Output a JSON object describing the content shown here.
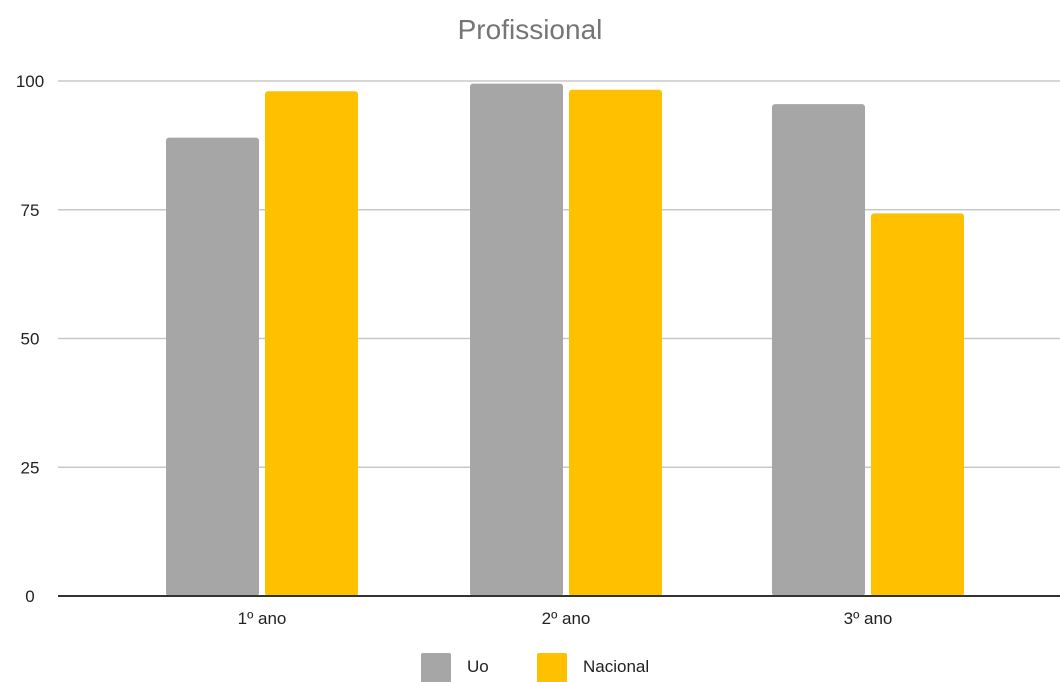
{
  "chart_data": {
    "type": "bar",
    "title": "Profissional",
    "categories": [
      "1º ano",
      "2º ano",
      "3º ano"
    ],
    "series": [
      {
        "name": "Uo",
        "values": [
          89,
          99.5,
          95.5
        ],
        "color": "#a6a6a6"
      },
      {
        "name": "Nacional",
        "values": [
          98,
          98.3,
          74.3
        ],
        "color": "#ffc000"
      }
    ],
    "ylim": [
      0,
      100
    ],
    "yticks": [
      "0",
      "25",
      "50",
      "75",
      "100"
    ],
    "grid": true,
    "legend": "bottom-center"
  }
}
